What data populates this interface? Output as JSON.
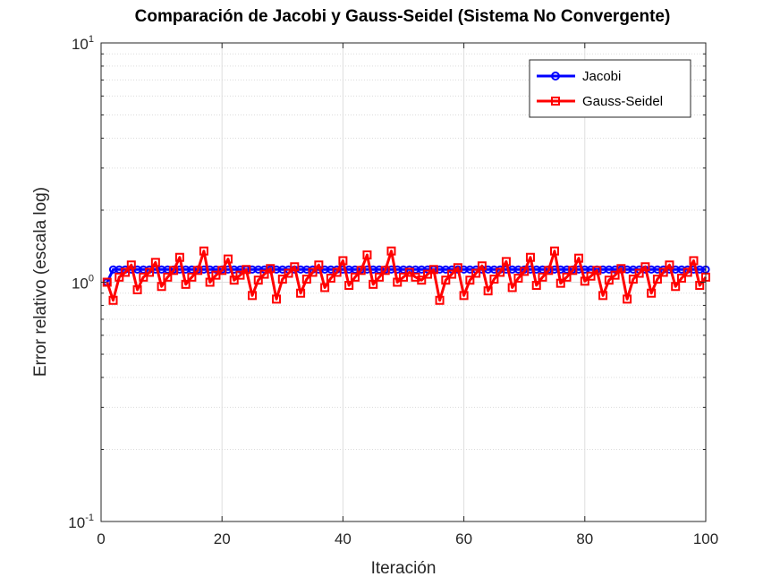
{
  "chart_data": {
    "type": "line",
    "title": "Comparación de Jacobi y Gauss-Seidel (Sistema No Convergente)",
    "xlabel": "Iteración",
    "ylabel": "Error relativo (escala log)",
    "xlim": [
      0,
      100
    ],
    "ylim": [
      0.1,
      10
    ],
    "yscale": "log",
    "grid": true,
    "legend_position": "top-right",
    "x_ticks": [
      "0",
      "20",
      "40",
      "60",
      "80",
      "100"
    ],
    "y_ticks": [
      {
        "value": 0.1,
        "base": "10",
        "exp": "-1"
      },
      {
        "value": 1,
        "base": "10",
        "exp": "0"
      },
      {
        "value": 10,
        "base": "10",
        "exp": "1"
      }
    ],
    "x": [
      1,
      2,
      3,
      4,
      5,
      6,
      7,
      8,
      9,
      10,
      11,
      12,
      13,
      14,
      15,
      16,
      17,
      18,
      19,
      20,
      21,
      22,
      23,
      24,
      25,
      26,
      27,
      28,
      29,
      30,
      31,
      32,
      33,
      34,
      35,
      36,
      37,
      38,
      39,
      40,
      41,
      42,
      43,
      44,
      45,
      46,
      47,
      48,
      49,
      50,
      51,
      52,
      53,
      54,
      55,
      56,
      57,
      58,
      59,
      60,
      61,
      62,
      63,
      64,
      65,
      66,
      67,
      68,
      69,
      70,
      71,
      72,
      73,
      74,
      75,
      76,
      77,
      78,
      79,
      80,
      81,
      82,
      83,
      84,
      85,
      86,
      87,
      88,
      89,
      90,
      91,
      92,
      93,
      94,
      95,
      96,
      97,
      98,
      99,
      100
    ],
    "series": [
      {
        "name": "Jacobi",
        "color": "#0000ff",
        "marker": "circle",
        "values": [
          1.0,
          1.13,
          1.13,
          1.13,
          1.13,
          1.13,
          1.13,
          1.13,
          1.13,
          1.13,
          1.13,
          1.13,
          1.13,
          1.13,
          1.13,
          1.13,
          1.13,
          1.13,
          1.13,
          1.13,
          1.13,
          1.13,
          1.13,
          1.13,
          1.13,
          1.13,
          1.13,
          1.13,
          1.13,
          1.13,
          1.13,
          1.13,
          1.13,
          1.13,
          1.13,
          1.13,
          1.13,
          1.13,
          1.13,
          1.13,
          1.13,
          1.13,
          1.13,
          1.13,
          1.13,
          1.13,
          1.13,
          1.13,
          1.13,
          1.13,
          1.13,
          1.13,
          1.13,
          1.13,
          1.13,
          1.13,
          1.13,
          1.13,
          1.13,
          1.13,
          1.13,
          1.13,
          1.13,
          1.13,
          1.13,
          1.13,
          1.13,
          1.13,
          1.13,
          1.13,
          1.13,
          1.13,
          1.13,
          1.13,
          1.13,
          1.13,
          1.13,
          1.13,
          1.13,
          1.13,
          1.13,
          1.13,
          1.13,
          1.13,
          1.13,
          1.13,
          1.13,
          1.13,
          1.13,
          1.13,
          1.13,
          1.13,
          1.13,
          1.13,
          1.13,
          1.13,
          1.13,
          1.13,
          1.13,
          1.13
        ]
      },
      {
        "name": "Gauss-Seidel",
        "color": "#ff0000",
        "marker": "square",
        "values": [
          1.0,
          0.84,
          1.05,
          1.1,
          1.18,
          0.93,
          1.05,
          1.1,
          1.21,
          0.96,
          1.05,
          1.12,
          1.27,
          0.98,
          1.05,
          1.12,
          1.35,
          1.0,
          1.07,
          1.12,
          1.25,
          1.02,
          1.07,
          1.13,
          0.88,
          1.02,
          1.08,
          1.14,
          0.85,
          1.03,
          1.09,
          1.16,
          0.9,
          1.03,
          1.1,
          1.18,
          0.95,
          1.04,
          1.1,
          1.23,
          0.97,
          1.05,
          1.12,
          1.3,
          0.98,
          1.05,
          1.12,
          1.35,
          1.0,
          1.05,
          1.1,
          1.05,
          1.02,
          1.08,
          1.13,
          0.84,
          1.02,
          1.08,
          1.15,
          0.88,
          1.02,
          1.09,
          1.17,
          0.92,
          1.03,
          1.1,
          1.22,
          0.95,
          1.04,
          1.11,
          1.27,
          0.97,
          1.05,
          1.12,
          1.35,
          0.99,
          1.05,
          1.12,
          1.26,
          1.01,
          1.06,
          1.12,
          0.88,
          1.02,
          1.07,
          1.14,
          0.85,
          1.03,
          1.09,
          1.16,
          0.9,
          1.03,
          1.1,
          1.18,
          0.96,
          1.04,
          1.1,
          1.23,
          0.97,
          1.05
        ]
      }
    ]
  }
}
